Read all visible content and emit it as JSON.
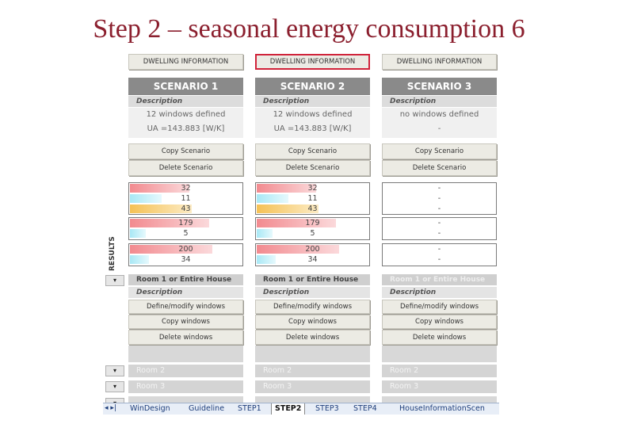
{
  "slide_title": "Step 2 – seasonal energy consumption 6",
  "results_label": "RESULTS",
  "columns": [
    {
      "dwelling_btn": "DWELLING INFORMATION",
      "scenario": "SCENARIO 1",
      "desc": "Description",
      "info1": "12 windows defined",
      "info2": "UA =143.883 [W/K]",
      "copy_scenario": "Copy Scenario",
      "delete_scenario": "Delete Scenario",
      "res1": [
        "32",
        "11",
        "43"
      ],
      "res2": [
        "179",
        "5"
      ],
      "res3": [
        "200",
        "34"
      ],
      "room1": "Room 1 or Entire House",
      "room_desc": "Description",
      "define": "Define/modify windows",
      "copy_windows": "Copy windows",
      "delete_windows": "Delete windows",
      "room2": "Room 2",
      "room3": "Room 3"
    },
    {
      "dwelling_btn": "DWELLING INFORMATION",
      "scenario": "SCENARIO 2",
      "desc": "Description",
      "info1": "12 windows defined",
      "info2": "UA =143.883 [W/K]",
      "copy_scenario": "Copy Scenario",
      "delete_scenario": "Delete Scenario",
      "res1": [
        "32",
        "11",
        "43"
      ],
      "res2": [
        "179",
        "5"
      ],
      "res3": [
        "200",
        "34"
      ],
      "room1": "Room 1 or Entire House",
      "room_desc": "Description",
      "define": "Define/modify windows",
      "copy_windows": "Copy windows",
      "delete_windows": "Delete windows",
      "room2": "Room 2",
      "room3": "Room 3"
    },
    {
      "dwelling_btn": "DWELLING INFORMATION",
      "scenario": "SCENARIO 3",
      "desc": "Description",
      "info1": "no windows defined",
      "info2": "-",
      "copy_scenario": "Copy Scenario",
      "delete_scenario": "Delete Scenario",
      "res1": [
        "-",
        "-",
        "-"
      ],
      "res2": [
        "-",
        "-"
      ],
      "res3": [
        "-",
        "-"
      ],
      "room1": "Room 1 or Entire House",
      "room_desc": "Description",
      "define": "Define/modify windows",
      "copy_windows": "Copy windows",
      "delete_windows": "Delete windows",
      "room2": "Room 2",
      "room3": "Room 3"
    }
  ],
  "expand_glyph": "▾",
  "tabs": {
    "nav": "◂ ▸|",
    "items": [
      "WinDesign",
      "Guideline",
      "STEP1",
      "STEP2",
      "STEP3",
      "STEP4",
      "HouseInformationScen"
    ],
    "active_index": 3
  },
  "colors": {
    "title": "#8b1f2e",
    "selected_border": "#d0233a",
    "bar_red": "#f28a8f",
    "bar_cyan": "#a8e8f5",
    "bar_yellow": "#f5c155"
  }
}
